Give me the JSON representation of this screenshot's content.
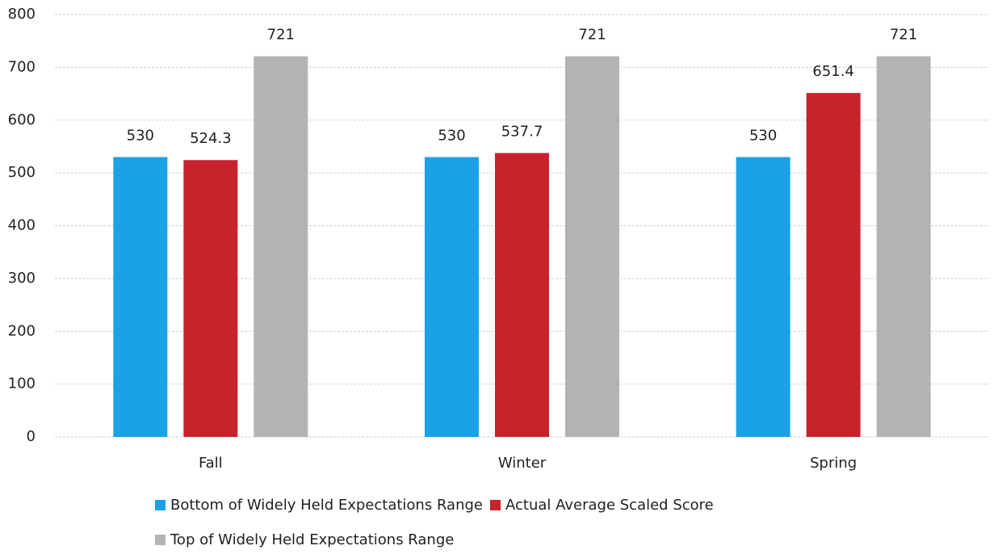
{
  "chart_data": {
    "type": "bar",
    "categories": [
      "Fall",
      "Winter",
      "Spring"
    ],
    "series": [
      {
        "name": "Bottom of Widely Held Expectations Range",
        "color": "#1ba1e6",
        "values": [
          530,
          530,
          530
        ]
      },
      {
        "name": "Actual Average Scaled Score",
        "color": "#c7232d",
        "values": [
          524.3,
          537.7,
          651.4
        ]
      },
      {
        "name": "Top of Widely Held Expectations Range",
        "color": "#b3b3b3",
        "values": [
          721,
          721,
          721
        ]
      }
    ],
    "ylim": [
      0,
      800
    ],
    "yticks": [
      0,
      100,
      200,
      300,
      400,
      500,
      600,
      700,
      800
    ],
    "grid": true
  }
}
